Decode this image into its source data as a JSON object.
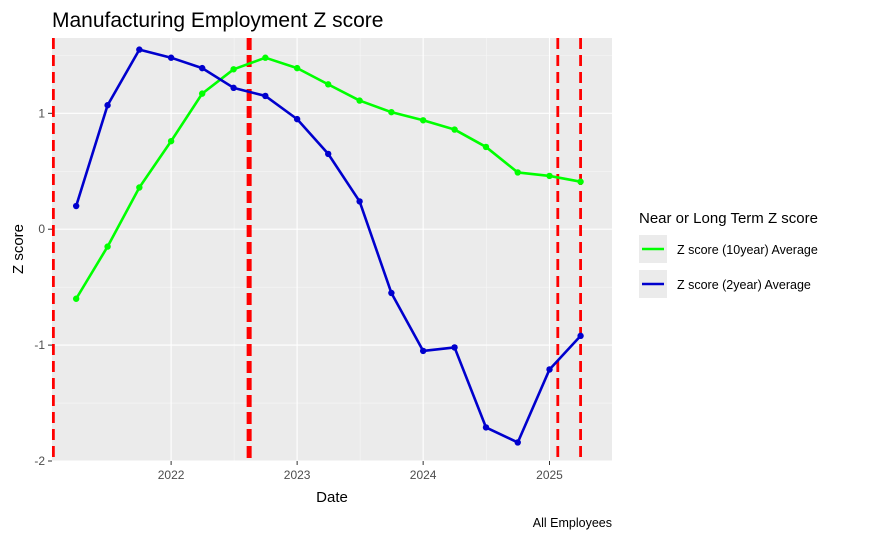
{
  "chart_data": {
    "type": "line",
    "title": "Manufacturing Employment Z score",
    "xlabel": "Date",
    "ylabel": "Z score",
    "caption": "All Employees",
    "xlim": [
      "2021-01-21",
      "2025-07-01"
    ],
    "ylim": [
      -2,
      1.65
    ],
    "x_ticks": [
      {
        "date": "2022-01-01",
        "label": "2022"
      },
      {
        "date": "2023-01-01",
        "label": "2023"
      },
      {
        "date": "2024-01-01",
        "label": "2024"
      },
      {
        "date": "2025-01-01",
        "label": "2025"
      }
    ],
    "y_ticks": [
      -2,
      -1,
      0,
      1
    ],
    "grid": true,
    "background": "#ebebeb",
    "legend": {
      "title": "Near or Long Term Z score",
      "position": "right"
    },
    "series": [
      {
        "name": "Z score (10year) Average",
        "color": "#00ff00",
        "x": [
          "2021-04-01",
          "2021-07-01",
          "2021-10-01",
          "2022-01-01",
          "2022-04-01",
          "2022-07-01",
          "2022-10-01",
          "2023-01-01",
          "2023-04-01",
          "2023-07-01",
          "2023-10-01",
          "2024-01-01",
          "2024-04-01",
          "2024-07-01",
          "2024-10-01",
          "2025-01-01",
          "2025-04-01"
        ],
        "values": [
          -0.6,
          -0.15,
          0.36,
          0.76,
          1.17,
          1.38,
          1.48,
          1.39,
          1.25,
          1.11,
          1.01,
          0.94,
          0.86,
          0.71,
          0.49,
          0.46,
          0.41
        ]
      },
      {
        "name": "Z score (2year) Average",
        "color": "#0000cd",
        "x": [
          "2021-04-01",
          "2021-07-01",
          "2021-10-01",
          "2022-01-01",
          "2022-04-01",
          "2022-07-01",
          "2022-10-01",
          "2023-01-01",
          "2023-04-01",
          "2023-07-01",
          "2023-10-01",
          "2024-01-01",
          "2024-04-01",
          "2024-07-01",
          "2024-10-01",
          "2025-01-01",
          "2025-04-01"
        ],
        "values": [
          0.2,
          1.07,
          1.55,
          1.48,
          1.39,
          1.22,
          1.15,
          0.95,
          0.65,
          0.24,
          -0.55,
          -1.05,
          -1.02,
          -1.71,
          -1.84,
          -1.21,
          -0.92
        ]
      }
    ],
    "vlines": [
      {
        "date": "2021-01-25",
        "style": "dashed",
        "color": "#ff0000",
        "weight": "normal"
      },
      {
        "date": "2022-08-15",
        "style": "dashed",
        "color": "#ff0000",
        "weight": "heavy"
      },
      {
        "date": "2025-01-25",
        "style": "dashed",
        "color": "#ff0000",
        "weight": "normal"
      },
      {
        "date": "2025-04-01",
        "style": "dashed",
        "color": "#ff0000",
        "weight": "normal"
      }
    ]
  }
}
